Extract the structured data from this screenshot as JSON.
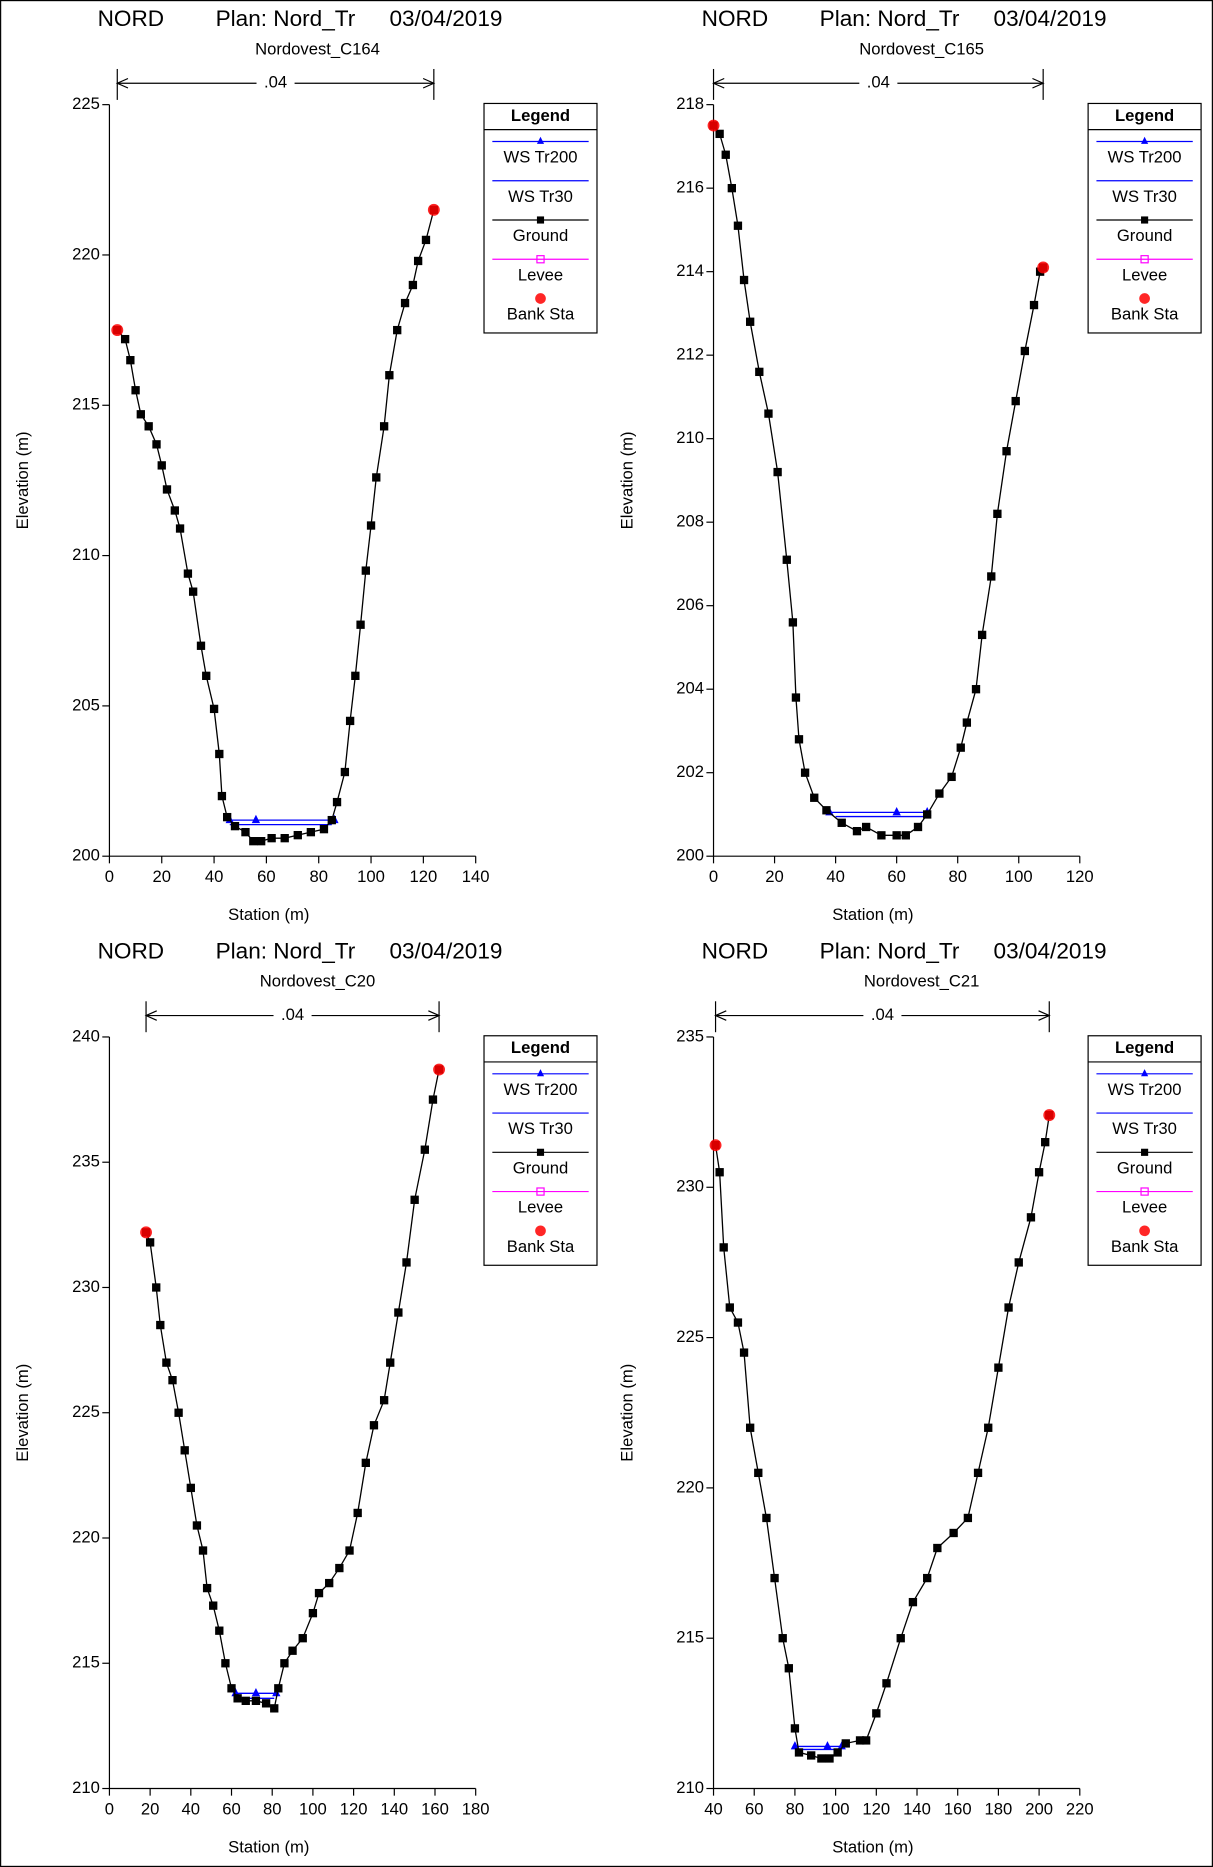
{
  "chart_data": [
    {
      "type": "line",
      "title": "NORD",
      "plan": "Plan: Nord_Tr",
      "date": "03/04/2019",
      "subtitle": "Nordovest_C164",
      "n_label": ".04",
      "xlabel": "Station (m)",
      "ylabel": "Elevation (m)",
      "legend_title": "Legend",
      "xlim": [
        0,
        140
      ],
      "ylim": [
        200,
        225
      ],
      "xticks": [
        0,
        20,
        40,
        60,
        80,
        100,
        120,
        140
      ],
      "yticks": [
        200,
        205,
        210,
        215,
        220,
        225
      ],
      "series": [
        {
          "name": "WS Tr200",
          "color": "#0000ff",
          "marker": "triangle",
          "x": [
            46,
            56,
            86
          ],
          "values": [
            201.2,
            201.2,
            201.2
          ]
        },
        {
          "name": "WS Tr30",
          "color": "#0000ff",
          "marker": "none",
          "x": [
            46,
            85
          ],
          "values": [
            201.05,
            201.05
          ]
        },
        {
          "name": "Ground",
          "color": "#000000",
          "marker": "square",
          "x": [
            3,
            6,
            8,
            10,
            12,
            15,
            18,
            20,
            22,
            25,
            27,
            30,
            32,
            35,
            37,
            40,
            42,
            43,
            45,
            48,
            52,
            55,
            58,
            62,
            67,
            72,
            77,
            82,
            85,
            87,
            90,
            92,
            94,
            96,
            98,
            100,
            102,
            105,
            107,
            110,
            113,
            116,
            118,
            121,
            124
          ],
          "values": [
            217.5,
            217.2,
            216.5,
            215.5,
            214.7,
            214.3,
            213.7,
            213,
            212.2,
            211.5,
            210.9,
            209.4,
            208.8,
            207,
            206,
            204.9,
            203.4,
            202,
            201.3,
            201,
            200.8,
            200.5,
            200.5,
            200.6,
            200.6,
            200.7,
            200.8,
            200.9,
            201.2,
            201.8,
            202.8,
            204.5,
            206,
            207.7,
            209.5,
            211,
            212.6,
            214.3,
            216,
            217.5,
            218.4,
            219,
            219.8,
            220.5,
            221.5
          ]
        },
        {
          "name": "Levee",
          "color": "#ff00ff",
          "marker": "open-square",
          "x": [],
          "values": []
        },
        {
          "name": "Bank Sta",
          "color": "#ff0000",
          "marker": "circle",
          "x": [
            3,
            124
          ],
          "values": [
            217.5,
            221.5
          ]
        }
      ]
    },
    {
      "type": "line",
      "title": "NORD",
      "plan": "Plan: Nord_Tr",
      "date": "03/04/2019",
      "subtitle": "Nordovest_C165",
      "n_label": ".04",
      "xlabel": "Station (m)",
      "ylabel": "Elevation (m)",
      "legend_title": "Legend",
      "xlim": [
        0,
        120
      ],
      "ylim": [
        200,
        218
      ],
      "xticks": [
        0,
        20,
        40,
        60,
        80,
        100,
        120
      ],
      "yticks": [
        200,
        202,
        204,
        206,
        208,
        210,
        212,
        214,
        216,
        218
      ],
      "series": [
        {
          "name": "WS Tr200",
          "color": "#0000ff",
          "marker": "triangle",
          "x": [
            38,
            60,
            70
          ],
          "values": [
            201.05,
            201.05,
            201.05
          ]
        },
        {
          "name": "WS Tr30",
          "color": "#0000ff",
          "marker": "none",
          "x": [
            40,
            69
          ],
          "values": [
            200.95,
            200.95
          ]
        },
        {
          "name": "Ground",
          "color": "#000000",
          "marker": "square",
          "x": [
            0,
            2,
            4,
            6,
            8,
            10,
            12,
            15,
            18,
            21,
            24,
            26,
            27,
            28,
            30,
            33,
            37,
            42,
            47,
            50,
            55,
            60,
            63,
            67,
            70,
            74,
            78,
            81,
            83,
            86,
            88,
            91,
            93,
            96,
            99,
            102,
            105,
            107,
            108
          ],
          "values": [
            217.5,
            217.3,
            216.8,
            216,
            215.1,
            213.8,
            212.8,
            211.6,
            210.6,
            209.2,
            207.1,
            205.6,
            203.8,
            202.8,
            202,
            201.4,
            201.1,
            200.8,
            200.6,
            200.7,
            200.5,
            200.5,
            200.5,
            200.7,
            201,
            201.5,
            201.9,
            202.6,
            203.2,
            204,
            205.3,
            206.7,
            208.2,
            209.7,
            210.9,
            212.1,
            213.2,
            214,
            214.1
          ]
        },
        {
          "name": "Levee",
          "color": "#ff00ff",
          "marker": "open-square",
          "x": [],
          "values": []
        },
        {
          "name": "Bank Sta",
          "color": "#ff0000",
          "marker": "circle",
          "x": [
            0,
            108
          ],
          "values": [
            217.5,
            214.1
          ]
        }
      ]
    },
    {
      "type": "line",
      "title": "NORD",
      "plan": "Plan: Nord_Tr",
      "date": "03/04/2019",
      "subtitle": "Nordovest_C20",
      "n_label": ".04",
      "xlabel": "Station (m)",
      "ylabel": "Elevation (m)",
      "legend_title": "Legend",
      "xlim": [
        0,
        180
      ],
      "ylim": [
        210,
        240
      ],
      "xticks": [
        0,
        20,
        40,
        60,
        80,
        100,
        120,
        140,
        160,
        180
      ],
      "yticks": [
        210,
        215,
        220,
        225,
        230,
        235,
        240
      ],
      "series": [
        {
          "name": "WS Tr200",
          "color": "#0000ff",
          "marker": "triangle",
          "x": [
            62,
            72,
            82
          ],
          "values": [
            213.8,
            213.8,
            213.8
          ]
        },
        {
          "name": "WS Tr30",
          "color": "#0000ff",
          "marker": "none",
          "x": [
            63,
            81
          ],
          "values": [
            213.6,
            213.6
          ]
        },
        {
          "name": "Ground",
          "color": "#000000",
          "marker": "square",
          "x": [
            18,
            20,
            23,
            25,
            28,
            31,
            34,
            37,
            40,
            43,
            46,
            48,
            51,
            54,
            57,
            60,
            63,
            67,
            72,
            77,
            81,
            83,
            86,
            90,
            95,
            100,
            103,
            108,
            113,
            118,
            122,
            126,
            130,
            135,
            138,
            142,
            146,
            150,
            155,
            159,
            162
          ],
          "values": [
            232.2,
            231.8,
            230,
            228.5,
            227,
            226.3,
            225,
            223.5,
            222,
            220.5,
            219.5,
            218,
            217.3,
            216.3,
            215,
            214,
            213.6,
            213.5,
            213.5,
            213.4,
            213.2,
            214,
            215,
            215.5,
            216,
            217,
            217.8,
            218.2,
            218.8,
            219.5,
            221,
            223,
            224.5,
            225.5,
            227,
            229,
            231,
            233.5,
            235.5,
            237.5,
            238.7
          ]
        },
        {
          "name": "Levee",
          "color": "#ff00ff",
          "marker": "open-square",
          "x": [],
          "values": []
        },
        {
          "name": "Bank Sta",
          "color": "#ff0000",
          "marker": "circle",
          "x": [
            18,
            162
          ],
          "values": [
            232.2,
            238.7
          ]
        }
      ]
    },
    {
      "type": "line",
      "title": "NORD",
      "plan": "Plan: Nord_Tr",
      "date": "03/04/2019",
      "subtitle": "Nordovest_C21",
      "n_label": ".04",
      "xlabel": "Station (m)",
      "ylabel": "Elevation (m)",
      "legend_title": "Legend",
      "xlim": [
        40,
        220
      ],
      "ylim": [
        210,
        235
      ],
      "xticks": [
        40,
        60,
        80,
        100,
        120,
        140,
        160,
        180,
        200,
        220
      ],
      "yticks": [
        210,
        215,
        220,
        225,
        230,
        235
      ],
      "series": [
        {
          "name": "WS Tr200",
          "color": "#0000ff",
          "marker": "triangle",
          "x": [
            80,
            96,
            103
          ],
          "values": [
            211.4,
            211.4,
            211.4
          ]
        },
        {
          "name": "WS Tr30",
          "color": "#0000ff",
          "marker": "none",
          "x": [
            81,
            102
          ],
          "values": [
            211.3,
            211.3
          ]
        },
        {
          "name": "Ground",
          "color": "#000000",
          "marker": "square",
          "x": [
            41,
            43,
            45,
            48,
            52,
            55,
            58,
            62,
            66,
            70,
            74,
            77,
            80,
            82,
            88,
            93,
            97,
            101,
            105,
            112,
            115,
            120,
            125,
            132,
            138,
            145,
            150,
            158,
            165,
            170,
            175,
            180,
            185,
            190,
            196,
            200,
            203,
            205
          ],
          "values": [
            231.4,
            230.5,
            228,
            226,
            225.5,
            224.5,
            222,
            220.5,
            219,
            217,
            215,
            214,
            212,
            211.2,
            211.1,
            211,
            211,
            211.2,
            211.5,
            211.6,
            211.6,
            212.5,
            213.5,
            215,
            216.2,
            217,
            218,
            218.5,
            219,
            220.5,
            222,
            224,
            226,
            227.5,
            229,
            230.5,
            231.5,
            232.4
          ]
        },
        {
          "name": "Levee",
          "color": "#ff00ff",
          "marker": "open-square",
          "x": [],
          "values": []
        },
        {
          "name": "Bank Sta",
          "color": "#ff0000",
          "marker": "circle",
          "x": [
            41,
            205
          ],
          "values": [
            231.4,
            232.4
          ]
        }
      ]
    }
  ]
}
